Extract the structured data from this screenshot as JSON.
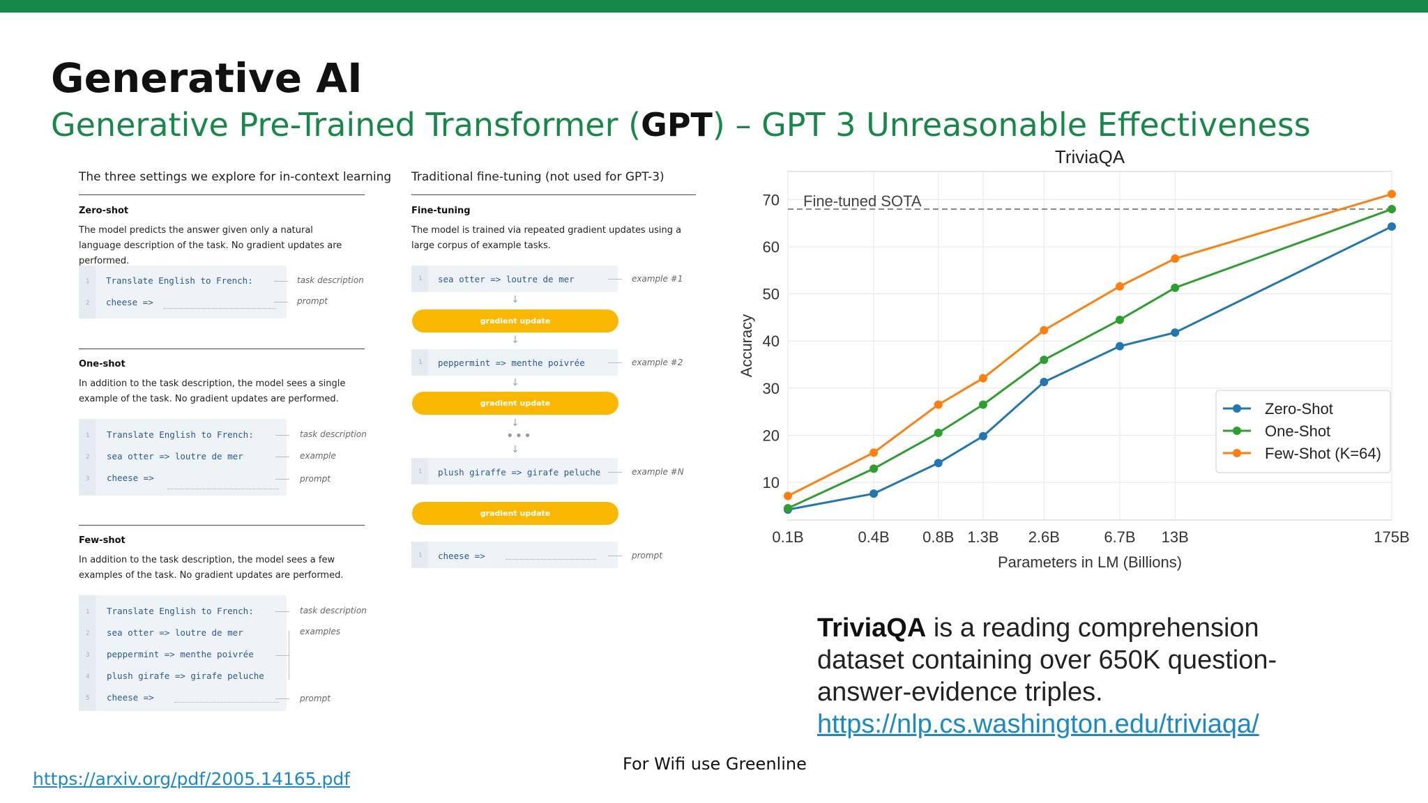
{
  "slide": {
    "title": "Generative AI",
    "subtitle_pre": "Generative Pre-Trained Transformer (",
    "subtitle_bold": "GPT",
    "subtitle_post": ") – GPT 3 Unreasonable Effectiveness",
    "wifi": "For Wifi use Greenline",
    "arxiv_link": "https://arxiv.org/pdf/2005.14165.pdf",
    "accent_color": "#16894a"
  },
  "diagram": {
    "left_header": "The three settings we explore for in-context learning",
    "right_header": "Traditional fine-tuning (not used for GPT-3)",
    "zero_shot": {
      "title": "Zero-shot",
      "desc": "The model predicts the answer given only a natural language description of the task. No gradient updates are performed.",
      "lines": [
        "Translate English to French:",
        "cheese =>"
      ],
      "annotations": [
        "task description",
        "prompt"
      ]
    },
    "one_shot": {
      "title": "One-shot",
      "desc": "In addition to the task description, the model sees a single example of the task. No gradient updates are performed.",
      "lines": [
        "Translate English to French:",
        "sea otter => loutre de mer",
        "cheese =>"
      ],
      "annotations": [
        "task description",
        "example",
        "prompt"
      ]
    },
    "few_shot": {
      "title": "Few-shot",
      "desc": "In addition to the task description, the model sees a few examples of the task. No gradient updates are performed.",
      "lines": [
        "Translate English to French:",
        "sea otter => loutre de mer",
        "peppermint => menthe poivrée",
        "plush girafe => girafe peluche",
        "cheese =>"
      ],
      "annotations": [
        "task description",
        "examples",
        "prompt"
      ]
    },
    "fine_tuning": {
      "title": "Fine-tuning",
      "desc": "The model is trained via repeated gradient updates using a large corpus of example tasks.",
      "examples": [
        "sea otter => loutre de mer",
        "peppermint => menthe poivrée",
        "plush giraffe => girafe peluche",
        "cheese =>"
      ],
      "annotations": [
        "example #1",
        "example #2",
        "example #N",
        "prompt"
      ],
      "gradient_label": "gradient update"
    }
  },
  "chart_data": {
    "type": "line",
    "title": "TriviaQA",
    "xlabel": "Parameters in LM (Billions)",
    "ylabel": "Accuracy",
    "x": [
      "0.1B",
      "0.4B",
      "0.8B",
      "1.3B",
      "2.6B",
      "6.7B",
      "13B",
      "175B"
    ],
    "x_scale": "log",
    "x_values": [
      0.125,
      0.35,
      0.76,
      1.3,
      2.7,
      6.7,
      13,
      175
    ],
    "yticks": [
      10,
      20,
      30,
      40,
      50,
      60,
      70
    ],
    "ylim": [
      2,
      76
    ],
    "grid": true,
    "legend": "lower-right",
    "reference_line": {
      "label": "Fine-tuned SOTA",
      "value": 68
    },
    "series": [
      {
        "name": "Zero-Shot",
        "color": "#1f77b4",
        "values": [
          4.2,
          7.6,
          14.1,
          19.8,
          31.3,
          38.9,
          41.8,
          64.3
        ]
      },
      {
        "name": "One-Shot",
        "color": "#2ca02c",
        "values": [
          4.5,
          12.9,
          20.5,
          26.5,
          36.0,
          44.5,
          51.3,
          68.0
        ]
      },
      {
        "name": "Few-Shot (K=64)",
        "color": "#ff7f0e",
        "values": [
          7.1,
          16.3,
          26.5,
          32.1,
          42.3,
          51.6,
          57.5,
          71.2
        ]
      }
    ]
  },
  "caption": {
    "bold": "TriviaQA",
    "text": " is a reading comprehension dataset containing over 650K question-answer-evidence triples.",
    "link": "https://nlp.cs.washington.edu/triviaqa/"
  }
}
